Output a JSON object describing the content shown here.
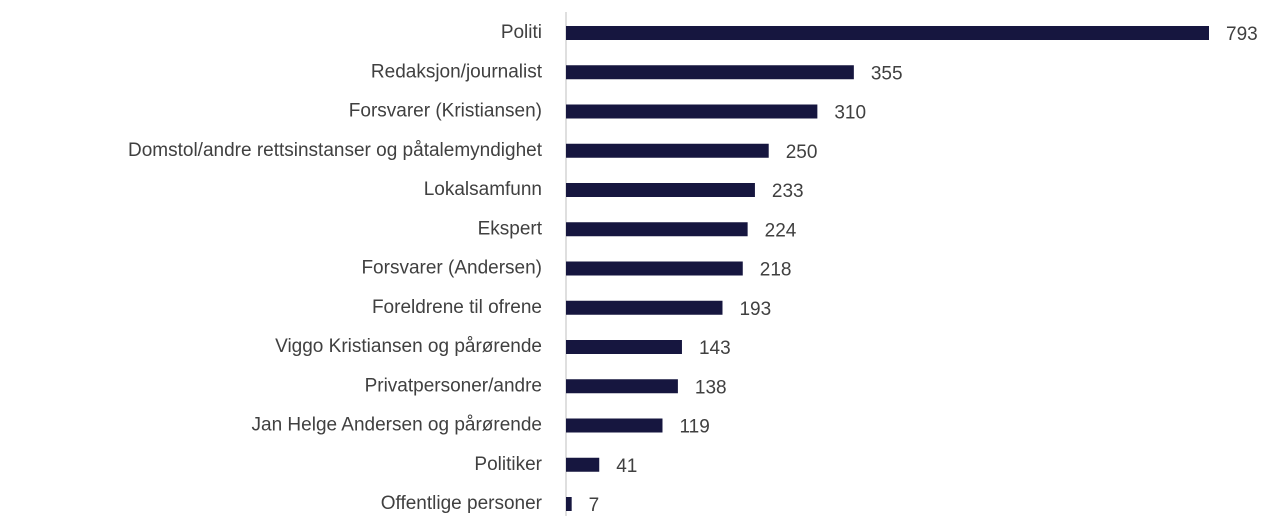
{
  "chart_data": {
    "type": "bar",
    "orientation": "horizontal",
    "categories": [
      "Politi",
      "Redaksjon/journalist",
      "Forsvarer (Kristiansen)",
      "Domstol/andre rettsinstanser og påtalemyndighet",
      "Lokalsamfunn",
      "Ekspert",
      "Forsvarer (Andersen)",
      "Foreldrene til ofrene",
      "Viggo Kristiansen og pårørende",
      "Privatpersoner/andre",
      "Jan Helge Andersen og pårørende",
      "Politiker",
      "Offentlige personer"
    ],
    "values": [
      793,
      355,
      310,
      250,
      233,
      224,
      218,
      193,
      143,
      138,
      119,
      41,
      7
    ],
    "color": "#16163f"
  }
}
